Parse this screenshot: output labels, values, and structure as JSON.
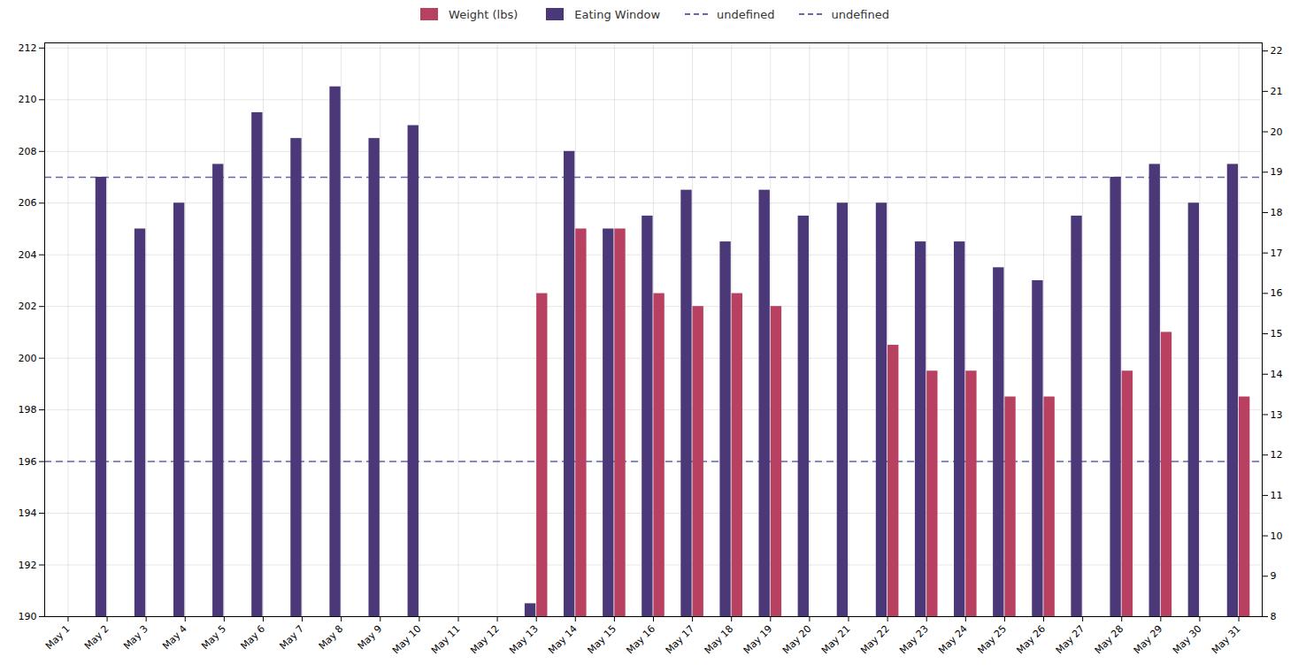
{
  "chart_data": {
    "type": "bar",
    "categories": [
      "May 1",
      "May 2",
      "May 3",
      "May 4",
      "May 5",
      "May 6",
      "May 7",
      "May 8",
      "May 9",
      "May 10",
      "May 11",
      "May 12",
      "May 13",
      "May 14",
      "May 15",
      "May 16",
      "May 17",
      "May 18",
      "May 19",
      "May 20",
      "May 21",
      "May 22",
      "May 23",
      "May 24",
      "May 25",
      "May 26",
      "May 27",
      "May 28",
      "May 29",
      "May 30",
      "May 31"
    ],
    "series": [
      {
        "name": "Weight (lbs)",
        "color": "#b84060",
        "values": [
          null,
          null,
          null,
          null,
          null,
          null,
          null,
          null,
          null,
          null,
          null,
          null,
          202.5,
          205.0,
          205.0,
          202.5,
          202.0,
          202.5,
          202.0,
          null,
          null,
          200.5,
          199.5,
          199.5,
          198.5,
          198.5,
          null,
          199.5,
          201.0,
          null,
          198.5
        ]
      },
      {
        "name": "Eating Window",
        "color": "#4a3878",
        "values": [
          null,
          207.0,
          205.0,
          206.0,
          207.5,
          209.5,
          208.5,
          210.5,
          208.5,
          209.0,
          null,
          null,
          190.5,
          208.0,
          205.0,
          205.5,
          206.5,
          204.5,
          206.5,
          205.5,
          206.0,
          206.0,
          204.5,
          204.5,
          203.5,
          203.0,
          205.5,
          207.0,
          207.5,
          206.0,
          207.5
        ]
      },
      {
        "name": "undefined",
        "type": "hline",
        "color": "#6666aa",
        "line_style": "dashed",
        "y": 207.0
      },
      {
        "name": "undefined",
        "type": "hline",
        "color": "#6666aa",
        "line_style": "dashed",
        "y": 196.0
      }
    ],
    "ylim": [
      190,
      212.2
    ],
    "yticks": [
      190,
      192,
      194,
      196,
      198,
      200,
      202,
      204,
      206,
      208,
      210,
      212
    ],
    "y2lim": [
      8,
      22.2
    ],
    "y2ticks": [
      8,
      9,
      10,
      11,
      12,
      13,
      14,
      15,
      16,
      17,
      18,
      19,
      20,
      21,
      22
    ],
    "grid": true,
    "legend": "top"
  }
}
